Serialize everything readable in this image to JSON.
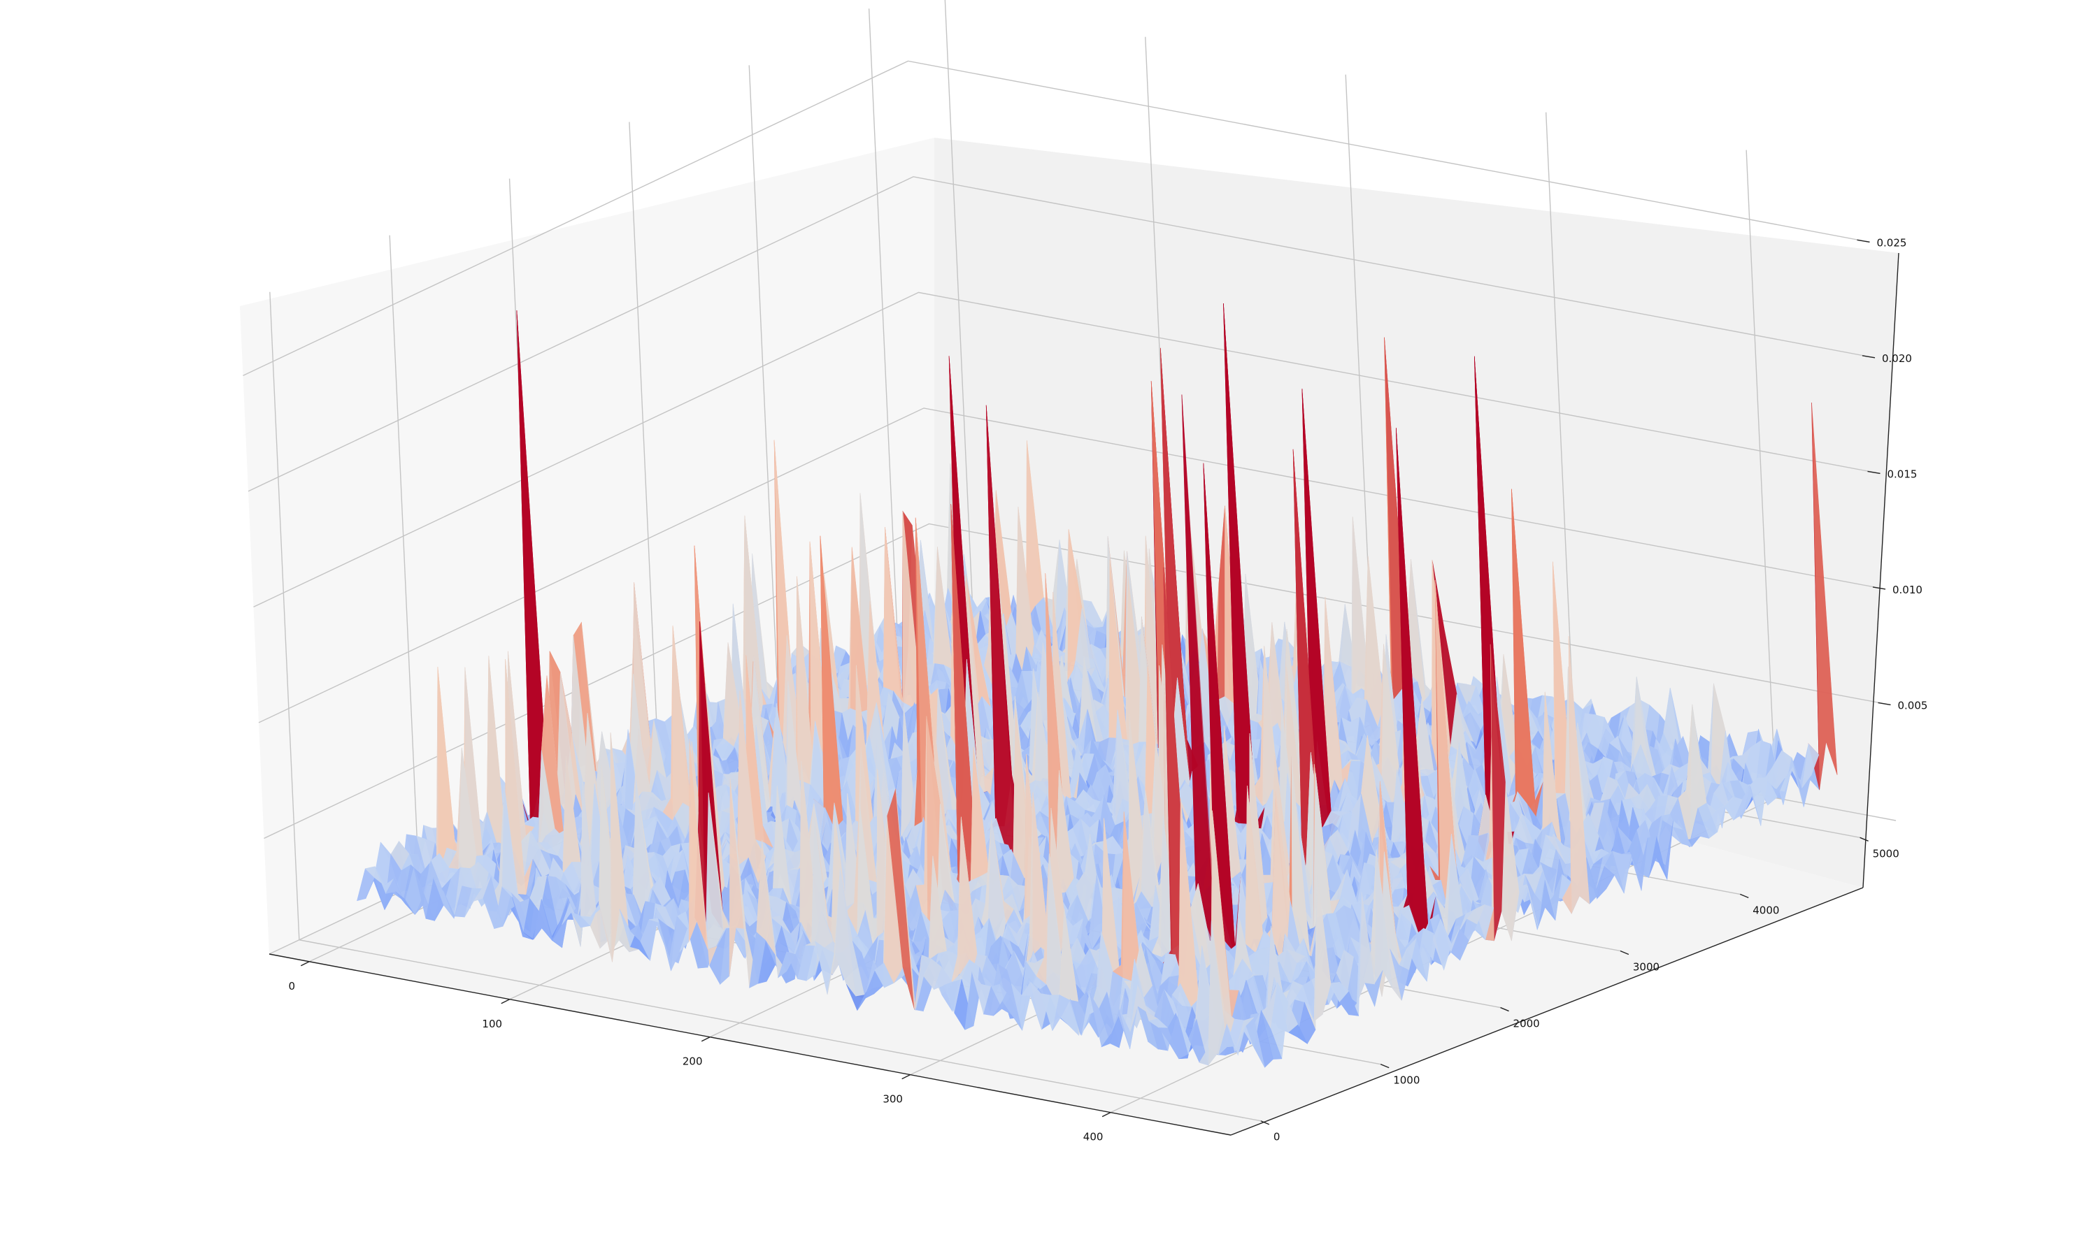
{
  "chart_data": {
    "type": "surface3d",
    "title": "",
    "xlabel": "",
    "ylabel": "",
    "zlabel": "",
    "colormap": "coolwarm",
    "colormap_stops": [
      "#3b4cc0",
      "#7b9ff9",
      "#c0d4f5",
      "#dddcdc",
      "#f2cbb7",
      "#ee8468",
      "#b40426"
    ],
    "xlim": [
      -20,
      460
    ],
    "ylim": [
      -250,
      5300
    ],
    "zlim": [
      0,
      0.028
    ],
    "x_ticks": [
      "0",
      "100",
      "200",
      "300",
      "400"
    ],
    "y_ticks": [
      "0",
      "1000",
      "2000",
      "3000",
      "4000",
      "5000"
    ],
    "z_ticks": [
      "0.005",
      "0.010",
      "0.015",
      "0.020",
      "0.025"
    ],
    "surface_sample": {
      "x_range": [
        10,
        450
      ],
      "y_range": [
        0,
        5000
      ],
      "z_baseline": 0.0015,
      "z_typical_max": 0.006,
      "z_peak_max": 0.027
    }
  }
}
